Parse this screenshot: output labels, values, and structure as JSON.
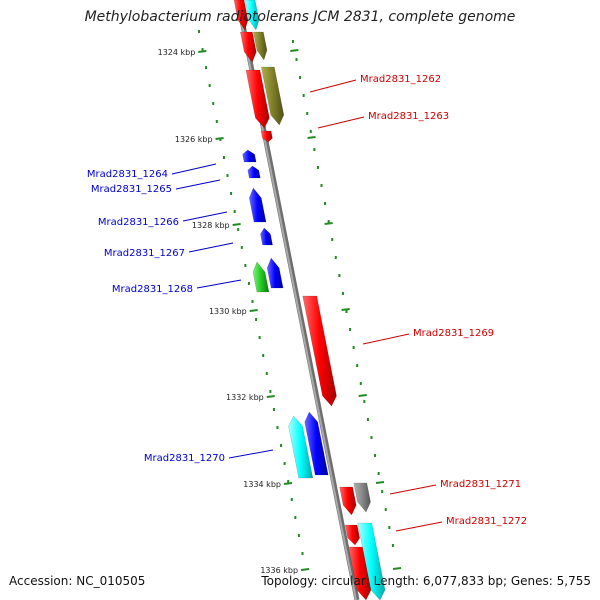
{
  "header": {
    "title": "Methylobacterium radiotolerans JCM 2831, complete genome"
  },
  "footer": {
    "accession": "Accession: NC_010505",
    "topology": "Topology: circular; Length: 6,077,833 bp; Genes: 5,755"
  },
  "colors": {
    "forward_label": "#cc0000",
    "reverse_label": "#0000cc",
    "tick": "#228b22",
    "backbone": "#888888"
  },
  "ticks": [
    "1324 kbp",
    "1326 kbp",
    "1328 kbp",
    "1330 kbp",
    "1332 kbp",
    "1334 kbp",
    "1336 kbp"
  ],
  "genes": [
    {
      "label": "Mrad2831_1262",
      "strand": "forward"
    },
    {
      "label": "Mrad2831_1263",
      "strand": "forward"
    },
    {
      "label": "Mrad2831_1264",
      "strand": "reverse"
    },
    {
      "label": "Mrad2831_1265",
      "strand": "reverse"
    },
    {
      "label": "Mrad2831_1266",
      "strand": "reverse"
    },
    {
      "label": "Mrad2831_1267",
      "strand": "reverse"
    },
    {
      "label": "Mrad2831_1268",
      "strand": "reverse"
    },
    {
      "label": "Mrad2831_1269",
      "strand": "forward"
    },
    {
      "label": "Mrad2831_1270",
      "strand": "reverse"
    },
    {
      "label": "Mrad2831_1271",
      "strand": "forward"
    },
    {
      "label": "Mrad2831_1272",
      "strand": "forward"
    }
  ]
}
